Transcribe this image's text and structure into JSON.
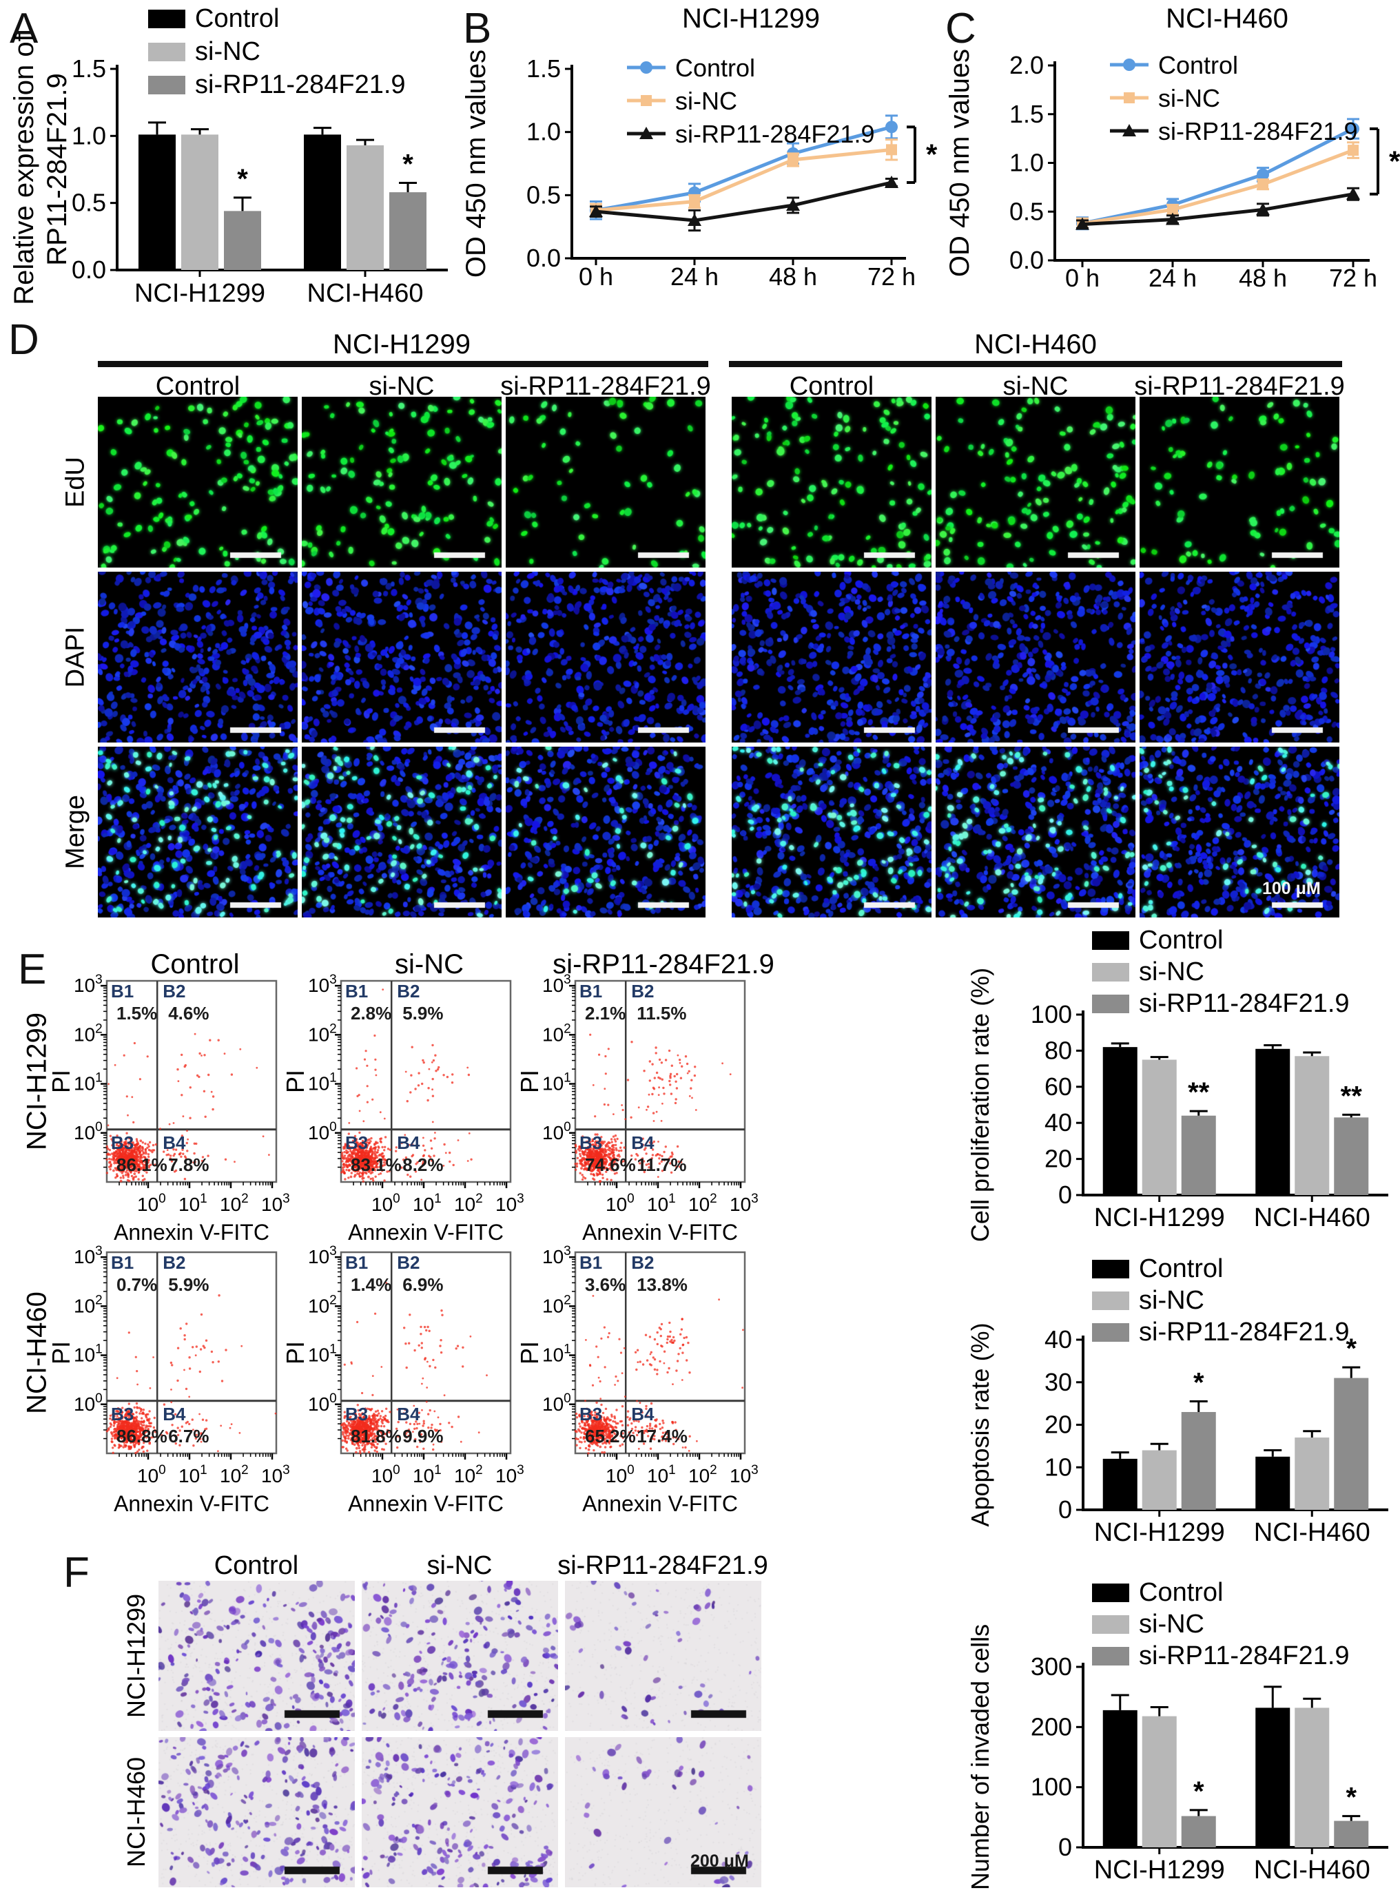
{
  "panel_letters": {
    "a": "A",
    "b": "B",
    "c": "C",
    "d": "D",
    "e": "E",
    "f": "F"
  },
  "groups": {
    "names": [
      "Control",
      "si-NC",
      "si-RP11-284F21.9"
    ],
    "cell_lines": [
      "NCI-H1299",
      "NCI-H460"
    ]
  },
  "colors": {
    "bar_control": "#000000",
    "bar_si_nc": "#b7b7b7",
    "bar_si_rp11": "#8c8c8c",
    "line_control": "#5a9be0",
    "line_si_nc": "#f6c28c",
    "line_si_rp11": "#141414",
    "flow_dot": "#f22c1e",
    "quadrant_label": "#223a66",
    "edu_green": "#39e24b",
    "dapi_blue": "#1f2fe0",
    "merge_cyan": "#55f0d8",
    "transwell_purple": "#8468c8",
    "axis": "#000000"
  },
  "chart_data": [
    {
      "id": "A",
      "type": "bar",
      "title": "",
      "ylabel": [
        "Relative expression of",
        "RP11-284F21.9"
      ],
      "ylim": [
        0,
        1.5
      ],
      "yticks": [
        "0.0",
        "0.5",
        "1.0",
        "1.5"
      ],
      "grid": false,
      "legend_position": "top-left",
      "categories": [
        "NCI-H1299",
        "NCI-H460"
      ],
      "series": [
        {
          "name": "Control",
          "color": "#000000",
          "values": [
            1.01,
            1.01
          ],
          "errors": [
            0.09,
            0.05
          ],
          "sig": [
            "",
            ""
          ]
        },
        {
          "name": "si-NC",
          "color": "#b7b7b7",
          "values": [
            1.01,
            0.93
          ],
          "errors": [
            0.04,
            0.04
          ],
          "sig": [
            "",
            ""
          ]
        },
        {
          "name": "si-RP11-284F21.9",
          "color": "#8c8c8c",
          "values": [
            0.44,
            0.58
          ],
          "errors": [
            0.1,
            0.07
          ],
          "sig": [
            "*",
            "*"
          ]
        }
      ]
    },
    {
      "id": "B",
      "type": "line",
      "title": "NCI-H1299",
      "ylabel": [
        "OD 450 nm values"
      ],
      "ylim": [
        0,
        1.5
      ],
      "yticks": [
        "0.0",
        "0.5",
        "1.0",
        "1.5"
      ],
      "x": [
        "0 h",
        "24 h",
        "48 h",
        "72 h"
      ],
      "sig": "*",
      "series": [
        {
          "name": "Control",
          "color": "#5a9be0",
          "marker": "circle",
          "values": [
            0.38,
            0.52,
            0.83,
            1.04
          ],
          "errors": [
            0.07,
            0.07,
            0.08,
            0.09
          ]
        },
        {
          "name": "si-NC",
          "color": "#f6c28c",
          "marker": "square",
          "values": [
            0.38,
            0.45,
            0.78,
            0.86
          ],
          "errors": [
            0.05,
            0.05,
            0.05,
            0.08
          ]
        },
        {
          "name": "si-RP11-284F21.9",
          "color": "#141414",
          "marker": "triangle",
          "values": [
            0.37,
            0.3,
            0.42,
            0.6
          ],
          "errors": [
            0.04,
            0.08,
            0.06,
            0.03
          ]
        }
      ]
    },
    {
      "id": "C",
      "type": "line",
      "title": "NCI-H460",
      "ylabel": [
        "OD 450 nm values"
      ],
      "ylim": [
        0,
        2.0
      ],
      "yticks": [
        "0.0",
        "0.5",
        "1.0",
        "1.5",
        "2.0"
      ],
      "x": [
        "0 h",
        "24 h",
        "48 h",
        "72 h"
      ],
      "sig": "*",
      "series": [
        {
          "name": "Control",
          "color": "#5a9be0",
          "marker": "circle",
          "values": [
            0.38,
            0.57,
            0.88,
            1.35
          ],
          "errors": [
            0.06,
            0.06,
            0.07,
            0.1
          ]
        },
        {
          "name": "si-NC",
          "color": "#f6c28c",
          "marker": "square",
          "values": [
            0.38,
            0.52,
            0.78,
            1.13
          ],
          "errors": [
            0.05,
            0.05,
            0.05,
            0.08
          ]
        },
        {
          "name": "si-RP11-284F21.9",
          "color": "#141414",
          "marker": "triangle",
          "values": [
            0.37,
            0.42,
            0.52,
            0.68
          ],
          "errors": [
            0.04,
            0.04,
            0.06,
            0.06
          ]
        }
      ]
    },
    {
      "id": "E-proliferation",
      "type": "bar",
      "title": "",
      "ylabel": [
        "Cell proliferation rate (%)"
      ],
      "ylim": [
        0,
        100
      ],
      "yticks": [
        "0",
        "20",
        "40",
        "60",
        "80",
        "100"
      ],
      "categories": [
        "NCI-H1299",
        "NCI-H460"
      ],
      "series": [
        {
          "name": "Control",
          "color": "#000000",
          "values": [
            82,
            81
          ],
          "errors": [
            2,
            2
          ],
          "sig": [
            "",
            ""
          ]
        },
        {
          "name": "si-NC",
          "color": "#b7b7b7",
          "values": [
            75,
            77
          ],
          "errors": [
            1.5,
            2
          ],
          "sig": [
            "",
            ""
          ]
        },
        {
          "name": "si-RP11-284F21.9",
          "color": "#8c8c8c",
          "values": [
            44,
            43
          ],
          "errors": [
            2.5,
            1.5
          ],
          "sig": [
            "**",
            "**"
          ]
        }
      ]
    },
    {
      "id": "E-apoptosis",
      "type": "bar",
      "title": "",
      "ylabel": [
        "Apoptosis rate (%)"
      ],
      "ylim": [
        0,
        40
      ],
      "yticks": [
        "0",
        "10",
        "20",
        "30",
        "40"
      ],
      "categories": [
        "NCI-H1299",
        "NCI-H460"
      ],
      "series": [
        {
          "name": "Control",
          "color": "#000000",
          "values": [
            12,
            12.5
          ],
          "errors": [
            1.5,
            1.5
          ],
          "sig": [
            "",
            ""
          ]
        },
        {
          "name": "si-NC",
          "color": "#b7b7b7",
          "values": [
            14,
            17
          ],
          "errors": [
            1.5,
            1.5
          ],
          "sig": [
            "",
            ""
          ]
        },
        {
          "name": "si-RP11-284F21.9",
          "color": "#8c8c8c",
          "values": [
            23,
            31
          ],
          "errors": [
            2.5,
            2.5
          ],
          "sig": [
            "*",
            "*"
          ]
        }
      ]
    },
    {
      "id": "F-invasion",
      "type": "bar",
      "title": "",
      "ylabel": [
        "Number of invaded cells"
      ],
      "ylim": [
        0,
        300
      ],
      "yticks": [
        "0",
        "100",
        "200",
        "300"
      ],
      "categories": [
        "NCI-H1299",
        "NCI-H460"
      ],
      "series": [
        {
          "name": "Control",
          "color": "#000000",
          "values": [
            228,
            232
          ],
          "errors": [
            25,
            35
          ],
          "sig": [
            "",
            ""
          ]
        },
        {
          "name": "si-NC",
          "color": "#b7b7b7",
          "values": [
            218,
            232
          ],
          "errors": [
            15,
            15
          ],
          "sig": [
            "",
            ""
          ]
        },
        {
          "name": "si-RP11-284F21.9",
          "color": "#8c8c8c",
          "values": [
            52,
            44
          ],
          "errors": [
            10,
            8
          ],
          "sig": [
            "*",
            "*"
          ]
        }
      ]
    }
  ],
  "panelD": {
    "groups": [
      {
        "cell_line": "NCI-H1299",
        "columns": [
          "Control",
          "si-NC",
          "si-RP11-284F21.9"
        ]
      },
      {
        "cell_line": "NCI-H460",
        "columns": [
          "Control",
          "si-NC",
          "si-RP11-284F21.9"
        ]
      }
    ],
    "row_labels": [
      "EdU",
      "DAPI",
      "Merge"
    ],
    "scale_label": "100 μM"
  },
  "panelE": {
    "column_titles": [
      "Control",
      "si-NC",
      "si-RP11-284F21.9"
    ],
    "row_cell_lines": [
      "NCI-H1299",
      "NCI-H460"
    ],
    "flow": {
      "x_axis": "Annexin V-FITC",
      "y_axis": "PI",
      "tick_exponents": [
        "0",
        "1",
        "2",
        "3"
      ],
      "quadrants": [
        "B1",
        "B2",
        "B3",
        "B4"
      ],
      "rows": [
        [
          {
            "B1": "1.5%",
            "B2": "4.6%",
            "B3": "86.1%",
            "B4": "7.8%"
          },
          {
            "B1": "2.8%",
            "B2": "5.9%",
            "B3": "83.1%",
            "B4": "8.2%"
          },
          {
            "B1": "2.1%",
            "B2": "11.5%",
            "B3": "74.6%",
            "B4": "11.7%"
          }
        ],
        [
          {
            "B1": "0.7%",
            "B2": "5.9%",
            "B3": "86.8%",
            "B4": "6.7%"
          },
          {
            "B1": "1.4%",
            "B2": "6.9%",
            "B3": "81.8%",
            "B4": "9.9%"
          },
          {
            "B1": "3.6%",
            "B2": "13.8%",
            "B3": "65.2%",
            "B4": "17.4%"
          }
        ]
      ]
    }
  },
  "panelF": {
    "column_titles": [
      "Control",
      "si-NC",
      "si-RP11-284F21.9"
    ],
    "row_cell_lines": [
      "NCI-H1299",
      "NCI-H460"
    ],
    "scale_label": "200 μM"
  }
}
